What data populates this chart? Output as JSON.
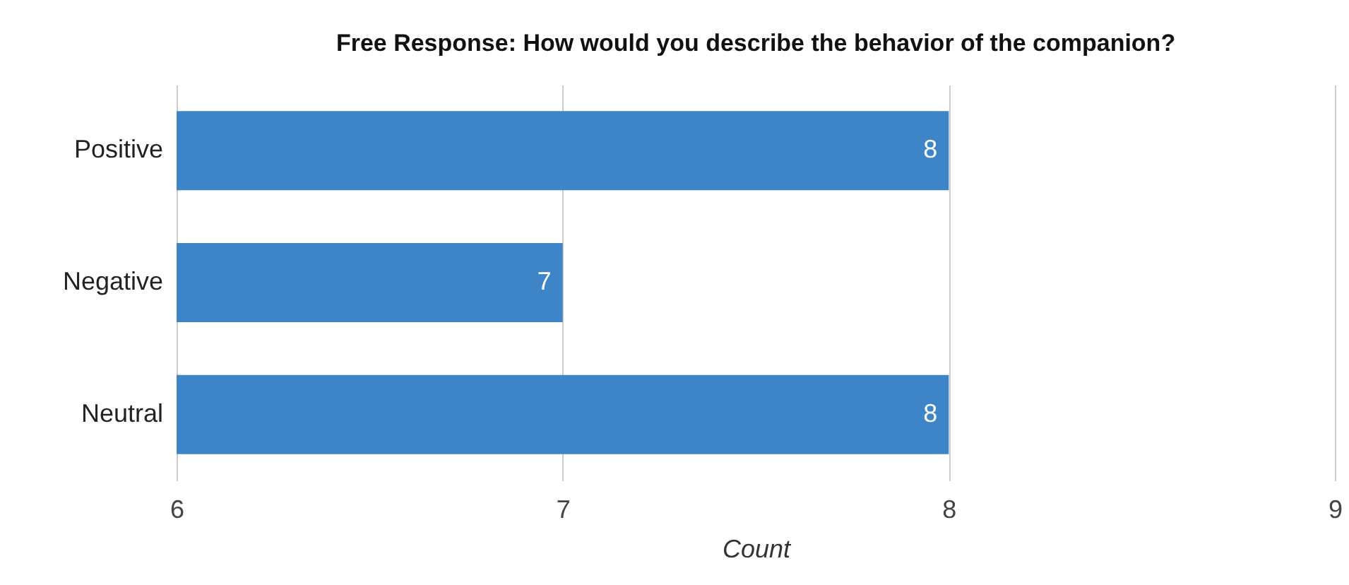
{
  "chart_data": {
    "type": "bar",
    "orientation": "horizontal",
    "title": "Free Response: How would you describe the behavior of the companion?",
    "xlabel": "Count",
    "categories": [
      "Positive",
      "Negative",
      "Neutral"
    ],
    "values": [
      8,
      7,
      8
    ],
    "color": "#3d85c6",
    "xlim": [
      6,
      9
    ],
    "xticks": [
      6,
      7,
      8,
      9
    ],
    "grid": "x",
    "data_labels": true
  }
}
